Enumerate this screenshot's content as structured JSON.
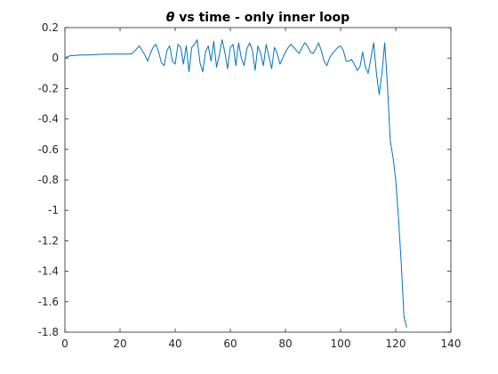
{
  "chart_data": {
    "type": "line",
    "title_symbol": "θ",
    "title_rest": " vs time - only inner loop",
    "xlabel": "",
    "ylabel": "",
    "xlim": [
      0,
      140
    ],
    "ylim": [
      -1.8,
      0.2
    ],
    "xticks": [
      0,
      20,
      40,
      60,
      80,
      100,
      120,
      140
    ],
    "yticks": [
      0.2,
      0,
      -0.2,
      -0.4,
      -0.6,
      -0.8,
      -1,
      -1.2,
      -1.4,
      -1.6,
      -1.8
    ],
    "xtick_labels": [
      "0",
      "20",
      "40",
      "60",
      "80",
      "100",
      "120",
      "140"
    ],
    "ytick_labels": [
      "0.2",
      "0",
      "-0.2",
      "-0.4",
      "-0.6",
      "-0.8",
      "-1",
      "-1.2",
      "-1.4",
      "-1.6",
      "-1.8"
    ],
    "grid": false,
    "box": true,
    "series": [
      {
        "color": "#0072bd",
        "x": [
          0,
          1,
          2,
          4,
          6,
          8,
          10,
          12,
          14,
          16,
          18,
          20,
          22,
          24,
          25,
          26,
          27,
          28,
          29,
          30,
          31,
          32,
          33,
          34,
          35,
          36,
          37,
          38,
          39,
          40,
          41,
          42,
          43,
          44,
          45,
          46,
          47,
          48,
          49,
          50,
          51,
          52,
          53,
          54,
          55,
          56,
          57,
          58,
          59,
          60,
          61,
          62,
          63,
          64,
          65,
          66,
          67,
          68,
          69,
          70,
          71,
          72,
          73,
          74,
          75,
          76,
          77,
          78,
          79,
          80,
          81,
          82,
          83,
          84,
          85,
          86,
          87,
          88,
          89,
          90,
          91,
          92,
          93,
          94,
          95,
          96,
          97,
          98,
          99,
          100,
          101,
          102,
          103,
          104,
          105,
          106,
          107,
          108,
          109,
          110,
          111,
          112,
          113,
          114,
          115,
          116,
          117,
          118,
          119,
          120,
          121,
          122,
          123,
          124
        ],
        "y": [
          0.0,
          0.01,
          0.015,
          0.018,
          0.02,
          0.02,
          0.022,
          0.024,
          0.025,
          0.026,
          0.027,
          0.026,
          0.027,
          0.027,
          0.04,
          0.06,
          0.08,
          0.05,
          0.02,
          -0.02,
          0.03,
          0.07,
          0.09,
          0.04,
          -0.03,
          -0.05,
          0.05,
          0.08,
          -0.02,
          -0.04,
          0.09,
          0.07,
          -0.04,
          0.08,
          -0.09,
          0.07,
          0.09,
          0.12,
          -0.03,
          -0.09,
          0.04,
          0.08,
          -0.02,
          0.11,
          -0.06,
          0.02,
          0.12,
          0.04,
          -0.07,
          0.07,
          0.09,
          -0.05,
          0.1,
          0.0,
          -0.05,
          0.06,
          0.1,
          0.05,
          -0.08,
          0.08,
          0.03,
          -0.05,
          0.09,
          0.01,
          -0.07,
          0.07,
          0.03,
          -0.04,
          0.0,
          0.04,
          0.07,
          0.09,
          0.07,
          0.05,
          0.03,
          0.07,
          0.1,
          0.08,
          0.04,
          0.03,
          0.06,
          0.1,
          0.05,
          -0.02,
          -0.05,
          0.0,
          0.03,
          0.05,
          0.07,
          0.08,
          0.05,
          -0.02,
          -0.02,
          -0.01,
          -0.04,
          -0.08,
          -0.06,
          0.04,
          -0.06,
          -0.1,
          0.0,
          0.1,
          -0.1,
          -0.24,
          -0.1,
          0.1,
          -0.18,
          -0.54,
          -0.65,
          -0.8,
          -1.05,
          -1.35,
          -1.7,
          -1.77
        ]
      }
    ]
  }
}
